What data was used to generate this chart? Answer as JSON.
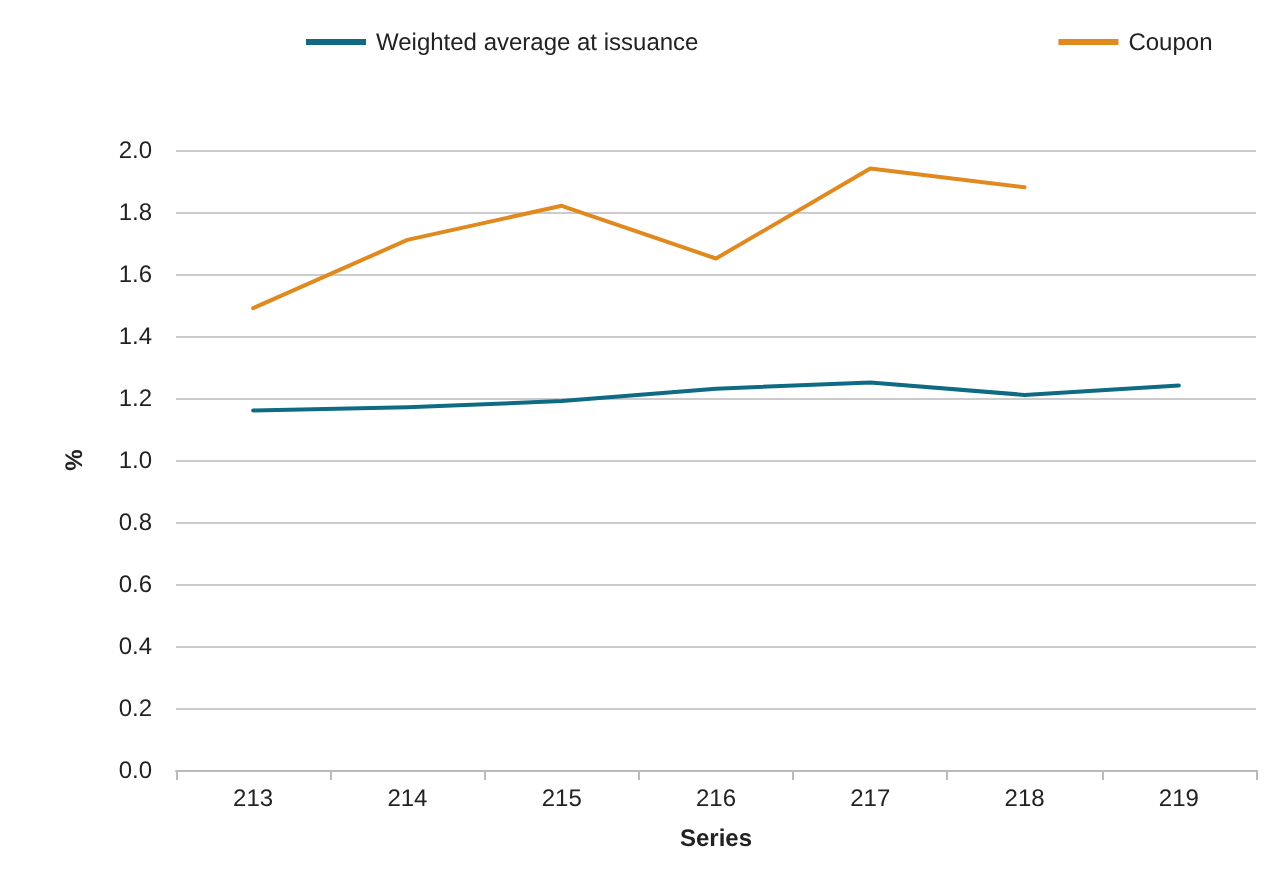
{
  "chart_data": {
    "type": "line",
    "xlabel": "Series",
    "ylabel": "%",
    "categories": [
      "213",
      "214",
      "215",
      "216",
      "217",
      "218",
      "219"
    ],
    "series": [
      {
        "name": "Weighted average at issuance",
        "color": "#0f6b84",
        "values": [
          1.16,
          1.17,
          1.19,
          1.23,
          1.25,
          1.21,
          1.24
        ]
      },
      {
        "name": "Coupon",
        "color": "#e0891f",
        "values": [
          1.49,
          1.71,
          1.82,
          1.65,
          1.94,
          1.88,
          null
        ]
      }
    ],
    "ylim": [
      0,
      2.0
    ],
    "yticks": [
      {
        "value": 0,
        "label": "0.0"
      },
      {
        "value": 0.2,
        "label": "0.2"
      },
      {
        "value": 0.4,
        "label": "0.4"
      },
      {
        "value": 0.6,
        "label": "0.6"
      },
      {
        "value": 0.8,
        "label": "0.8"
      },
      {
        "value": 1,
        "label": "1.0"
      },
      {
        "value": 1.2,
        "label": "1.2"
      },
      {
        "value": 1.4,
        "label": "1.4"
      },
      {
        "value": 1.6,
        "label": "1.6"
      },
      {
        "value": 1.8,
        "label": "1.8"
      },
      {
        "value": 2,
        "label": "2.0"
      }
    ],
    "grid": "y",
    "legend": "top",
    "marker": "none",
    "line_style": "solid"
  }
}
